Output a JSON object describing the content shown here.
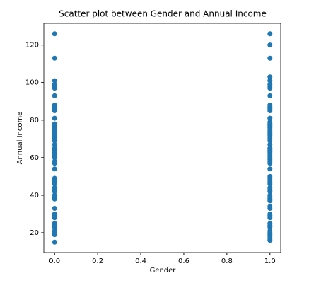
{
  "chart_data": {
    "type": "scatter",
    "title": "Scatter plot between Gender and Annual Income",
    "xlabel": "Gender",
    "ylabel": "Annual Income",
    "color": "#1f77b4",
    "x": [
      0,
      0,
      0,
      0,
      0,
      0,
      0,
      0,
      0,
      0,
      0,
      0,
      0,
      0,
      0,
      0,
      0,
      0,
      0,
      0,
      0,
      0,
      0,
      0,
      0,
      0,
      0,
      0,
      0,
      0,
      0,
      0,
      0,
      0,
      0,
      0,
      0,
      0,
      0,
      0,
      0,
      0,
      0,
      0,
      0,
      0,
      0,
      0,
      0,
      0,
      0,
      0,
      0,
      1,
      1,
      1,
      1,
      1,
      1,
      1,
      1,
      1,
      1,
      1,
      1,
      1,
      1,
      1,
      1,
      1,
      1,
      1,
      1,
      1,
      1,
      1,
      1,
      1,
      1,
      1,
      1,
      1,
      1,
      1,
      1,
      1,
      1,
      1,
      1,
      1,
      1,
      1,
      1,
      1,
      1,
      1,
      1,
      1,
      1,
      1,
      1,
      1,
      1,
      1,
      1,
      1,
      1,
      1,
      1,
      1,
      1,
      1,
      1,
      1,
      1
    ],
    "y": [
      15,
      19,
      20,
      21,
      23,
      24,
      25,
      28,
      29,
      30,
      33,
      38,
      39,
      40,
      42,
      43,
      44,
      46,
      47,
      48,
      49,
      54,
      57,
      58,
      60,
      61,
      62,
      63,
      64,
      65,
      67,
      69,
      70,
      71,
      72,
      73,
      74,
      75,
      76,
      77,
      78,
      81,
      85,
      86,
      87,
      88,
      93,
      97,
      98,
      99,
      101,
      113,
      126,
      16,
      17,
      18,
      19,
      20,
      21,
      23,
      24,
      25,
      28,
      29,
      30,
      33,
      34,
      37,
      38,
      39,
      40,
      42,
      43,
      44,
      46,
      47,
      48,
      49,
      50,
      54,
      57,
      58,
      59,
      60,
      61,
      62,
      63,
      64,
      65,
      67,
      69,
      70,
      71,
      72,
      73,
      74,
      75,
      76,
      77,
      78,
      79,
      81,
      85,
      86,
      87,
      88,
      93,
      97,
      98,
      99,
      101,
      103,
      113,
      120,
      126
    ],
    "xlim": [
      -0.05,
      1.05
    ],
    "ylim": [
      9.45,
      131.55
    ],
    "xticks": [
      {
        "value": 0,
        "label": "0.0"
      },
      {
        "value": 0.2,
        "label": "0.2"
      },
      {
        "value": 0.4,
        "label": "0.4"
      },
      {
        "value": 0.6,
        "label": "0.6"
      },
      {
        "value": 0.8,
        "label": "0.8"
      },
      {
        "value": 1,
        "label": "1.0"
      }
    ],
    "yticks": [
      20,
      40,
      60,
      80,
      100,
      120
    ]
  }
}
